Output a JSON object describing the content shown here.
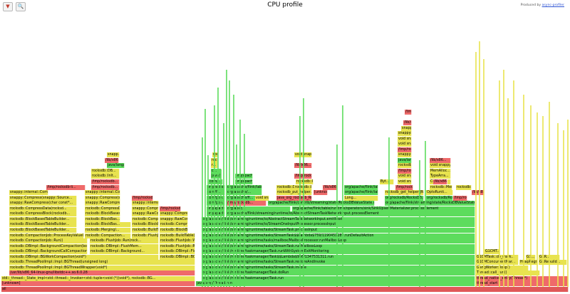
{
  "header": {
    "title": "CPU profile",
    "credit_prefix": "Produced by ",
    "credit_link": "async-profiler",
    "reverse_button_icon": "reverse-icon",
    "search_button_icon": "search-icon"
  },
  "frames": [
    {
      "label": "all",
      "cls": "c-root"
    },
    {
      "label": "[unknown]",
      "cls": "c-nat"
    },
    {
      "label": "std::_thread::_State_impl<std::thread::_Invoker<std::tuple<void (*)(void*), rocksdb::BG...",
      "cls": "c-cpp"
    },
    {
      "label": "/usr/lib/x86_64-linux-gnu/libstdc++.so.6.0.28",
      "cls": "c-nat"
    },
    {
      "label": "rocksdb::ThreadPoolImpl::Impl::BGThreadWrapper(void*)",
      "cls": "c-cpp"
    },
    {
      "label": "rocksdb::ThreadPoolImpl::Impl::BGThread(unsigned long)",
      "cls": "c-cpp"
    },
    {
      "label": "rocksdb::DBImpl::BGWorkCompaction(void*)",
      "cls": "c-cpp"
    },
    {
      "label": "rocksdb::DBImpl::BackgroundCallCompaction(rocksdb::...",
      "cls": "c-cpp"
    },
    {
      "label": "rocksdb::DBImpl::BackgroundCompaction(bool*, rocksdb::JobContext...",
      "cls": "c-cpp"
    },
    {
      "label": "rocksdb::CompactionJob::Run()",
      "cls": "c-cpp"
    },
    {
      "label": "rocksdb::CompactionJob::ProcessKeyValueCompaction(rocksd...",
      "cls": "c-cpp"
    },
    {
      "label": "rocksdb::BlockBasedTableBuilder...",
      "cls": "c-cpp"
    },
    {
      "label": "rocksdb::BlockBasedTableBuilder...",
      "cls": "c-cpp"
    },
    {
      "label": "rocksdb::BlockBasedTableBuilder...",
      "cls": "c-cpp"
    },
    {
      "label": "rocksdb::CompressBlock(rocksdb...",
      "cls": "c-cpp"
    },
    {
      "label": "rocksdb::CompressData(rocksd...",
      "cls": "c-cpp"
    },
    {
      "label": "snappy::RawCompress(char const*...",
      "cls": "c-cpp"
    },
    {
      "label": "snappy::Compress(snappy::Source...",
      "cls": "c-cpp"
    },
    {
      "label": "snappy::internal::CompressFr...",
      "cls": "c-cpp"
    },
    {
      "label": "/tmp/rocksdb-li...",
      "cls": "c-nat"
    },
    {
      "label": "rocksdb::Compaction...",
      "cls": "c-cpp"
    },
    {
      "label": "rocksdb::Mergingl...",
      "cls": "c-cpp"
    },
    {
      "label": "rocksdb::BlockBas...",
      "cls": "c-cpp"
    },
    {
      "label": "rocksdb::DBImpl::BGWorkFlush(void*)",
      "cls": "c-cpp"
    },
    {
      "label": "rocksdb::DBImpl::Background...",
      "cls": "c-cpp"
    },
    {
      "label": "rocksdb::DBImpl::FlushMem...",
      "cls": "c-cpp"
    },
    {
      "label": "rocksdb::FlushJob::Run(rock...",
      "cls": "c-cpp"
    },
    {
      "label": "rocksdb::FlushJob::WriteLev...",
      "cls": "c-cpp"
    },
    {
      "label": "rocksdb::BuildTable(std::str...",
      "cls": "c-cpp"
    },
    {
      "label": "rocksdb::BlockBasedTable...",
      "cls": "c-cpp"
    },
    {
      "label": "rocksdb::CompressData(rocksd...",
      "cls": "c-cpp"
    },
    {
      "label": "snappy::RawCompress(char...",
      "cls": "c-cpp"
    },
    {
      "label": "snappy::Compress(snappy::...",
      "cls": "c-cpp"
    },
    {
      "label": "snappy::internal::Compres...",
      "cls": "c-cpp"
    },
    {
      "label": "/tmp/rocksdb...",
      "cls": "c-nat"
    },
    {
      "label": "java/lang/Thread.run",
      "cls": "c-java"
    },
    {
      "label": "org/apache/flink/runtime/taskmanager/Task.run",
      "cls": "c-java"
    },
    {
      "label": "org/apache/flink/runtime/taskmanager/Task.doRun",
      "cls": "c-java"
    },
    {
      "label": "org/apache/flink/streaming/runtime/tasks/StreamTask.invoke",
      "cls": "c-java"
    },
    {
      "label": "org/apache/flink/streaming/runtime/tasks/StreamTask.restoreAndInvoke",
      "cls": "c-java"
    },
    {
      "label": "org/apache/flink/runtime/taskmanager/Task$$Lambda$956/1347531311.run",
      "cls": "c-java"
    },
    {
      "label": "org/apache/flink/runtime/taskmanager/Task.runWithSystemExitMonitoring",
      "cls": "c-java"
    },
    {
      "label": "org/apache/flink/streaming/runtime/tasks/StreamTask.runMailboxLoop",
      "cls": "c-java"
    },
    {
      "label": "org/apache/flink/streaming/runtime/tasks/mailbox/MailboxProcessor.runMailboxLoop",
      "cls": "c-java"
    },
    {
      "label": "org/apache/flink/streaming/runtime/tasks/StreamTask$$Lambda$759/1190451289.runDefaultAction",
      "cls": "c-java"
    },
    {
      "label": "org/apache/flink/streaming/runtime/tasks/StreamTask.processInput",
      "cls": "c-java"
    },
    {
      "label": "org/apache/flink/streaming/runtime/io/StreamOneInputProcessor.processInput",
      "cls": "c-java"
    },
    {
      "label": "org/apache/flink/streaming/runtime/io/AbstractStreamTaskNetworkInput.emitNext",
      "cls": "c-java"
    },
    {
      "label": "org/apache/flink/streaming/runtime/io/AbstractStreamTaskNetworkInput.processElement",
      "cls": "c-java"
    },
    {
      "label": "org/apache/flink/streaming/runtime/tasks/OneInputStreamTask$StreamTaskNetworkOutput.emitRecord",
      "cls": "c-java"
    },
    {
      "label": "org/apac...",
      "cls": "c-java"
    },
    {
      "label": "org/apache/flink/table/runtime/operators/sink/SinkUpsertMaterializer.processElement",
      "cls": "c-java"
    },
    {
      "label": "org/apache/flink/streaming/state/RocksDBValueState.v...",
      "cls": "c-java"
    },
    {
      "label": "org/apache/flink/contrib/streaming/state/RocksDBValueState.update",
      "cls": "c-java"
    },
    {
      "label": "org/apache/flink/contrib/streaming/state/RocksDBVal...",
      "cls": "c-java"
    },
    {
      "label": "org/apache/flink/contrib/streaming/state/RocksDBVal...",
      "cls": "c-java"
    },
    {
      "label": "com/goo...",
      "cls": "c-java"
    },
    {
      "label": "org/rocksdb/RocksDB.put",
      "cls": "c-java"
    },
    {
      "label": "org/rocksdb/RocksDB.get",
      "cls": "c-java"
    },
    {
      "label": "Java_org_rocksdb_Ro...",
      "cls": "c-nat"
    },
    {
      "label": "rocksdb_put_helper...",
      "cls": "c-cpp"
    },
    {
      "label": "[unknown]",
      "cls": "c-nat"
    },
    {
      "label": "rocksdb_get_helper(JNIEnv...",
      "cls": "c-cpp"
    },
    {
      "label": "java_org_rocksdb_RocksDB_g...",
      "cls": "c-nat"
    },
    {
      "label": "rocksdb::DB::Put(...",
      "cls": "c-cpp"
    },
    {
      "label": "rocksdb::DBImpl...",
      "cls": "c-cpp"
    },
    {
      "label": "/lib/x86...",
      "cls": "c-nat"
    },
    {
      "label": "/tmp/rocksdb...",
      "cls": "c-nat"
    },
    {
      "label": "snappy::...",
      "cls": "c-cpp"
    },
    {
      "label": "void snappy...",
      "cls": "c-cpp"
    },
    {
      "label": "MemAlloc...",
      "cls": "c-cpp"
    },
    {
      "label": "TypeArra...",
      "cls": "c-cpp"
    },
    {
      "label": "Collecte...",
      "cls": "c-cpp"
    },
    {
      "label": "rocksdb::Mem...",
      "cls": "c-cpp"
    },
    {
      "label": "OptoRunti...",
      "cls": "c-cpp"
    },
    {
      "label": "/lib/x8...",
      "cls": "c-nat"
    },
    {
      "label": "thread_start",
      "cls": "c-nat"
    },
    {
      "label": "thread_native_entry(Thread*)",
      "cls": "c-nat"
    },
    {
      "label": "Thread::call_run()",
      "cls": "c-cpp"
    },
    {
      "label": "GangWorker::loop()",
      "cls": "c-cpp"
    },
    {
      "label": "G1CMConcurrentMar...",
      "cls": "c-cpp"
    },
    {
      "label": "G1CMTask::do_mark...",
      "cls": "c-cpp"
    },
    {
      "label": "G1CMT...",
      "cls": "c-cpp"
    },
    {
      "label": "HeapRegio...",
      "cls": "c-cpp"
    },
    {
      "label": "G1Rebuild...",
      "cls": "c-cpp"
    },
    {
      "label": "G1...",
      "cls": "c-cpp"
    },
    {
      "label": "G1R...",
      "cls": "c-cpp"
    },
    {
      "label": "Byt...",
      "cls": "c-cpp"
    },
    {
      "label": "Long...",
      "cls": "c-cpp"
    },
    {
      "label": "void snappy...",
      "cls": "c-cpp"
    },
    {
      "label": "rocksdb::Inlt...",
      "cls": "c-cpp"
    },
    {
      "label": "/tmp/rocksdb...",
      "cls": "c-nat"
    },
    {
      "label": "rocksdb::DB...",
      "cls": "c-cpp"
    },
    {
      "label": "java/lang/...",
      "cls": "c-java"
    },
    {
      "label": "/lib/x86...",
      "cls": "c-nat"
    },
    {
      "label": "/tmp/rocks...",
      "cls": "c-nat"
    },
    {
      "label": "snapp...",
      "cls": "c-cpp"
    },
    {
      "label": "void snappy...",
      "cls": "c-cpp"
    },
    {
      "label": "/tmp/rocksdb-l...",
      "cls": "c-nat"
    },
    {
      "label": "void snappy...",
      "cls": "c-cpp"
    },
    {
      "label": "/tmp/rocksdb...",
      "cls": "c-nat"
    },
    {
      "label": "org/apache/fl...",
      "cls": "c-java"
    },
    {
      "label": "org/apache/...",
      "cls": "c-java"
    },
    {
      "label": "org/apache/flink/tab...",
      "cls": "c-java"
    },
    {
      "label": "org/apache/flink/tab...",
      "cls": "c-java"
    },
    {
      "label": "org/apache/...",
      "cls": "c-java"
    },
    {
      "label": "com/goo...",
      "cls": "c-java"
    },
    {
      "label": "com/fl...",
      "cls": "c-java"
    },
    {
      "label": "org/rocksdb/RocksDB.get",
      "cls": "c-java"
    },
    {
      "label": "org/apache/flink/ap...",
      "cls": "c-java"
    },
    {
      "label": "org/apache/flink/ap...",
      "cls": "c-java"
    },
    {
      "label": "org/apache/flink/tab...",
      "cls": "c-java"
    },
    {
      "label": "com/...",
      "cls": "c-java"
    },
    {
      "label": "com/...",
      "cls": "c-java"
    },
    {
      "label": "java/u...",
      "cls": "c-java"
    },
    {
      "label": "c...",
      "cls": "c-java"
    },
    {
      "label": "r...",
      "cls": "c-cpp"
    },
    {
      "label": "rocksdb::...",
      "cls": "c-cpp"
    },
    {
      "label": "snappy::...",
      "cls": "c-cpp"
    },
    {
      "label": "/tmp/rocksdb...",
      "cls": "c-nat"
    },
    {
      "label": "rocksdb::Mem...",
      "cls": "c-cpp"
    },
    {
      "label": "void snappy...",
      "cls": "c-cpp"
    },
    {
      "label": "/lib/x86...",
      "cls": "c-nat"
    }
  ]
}
